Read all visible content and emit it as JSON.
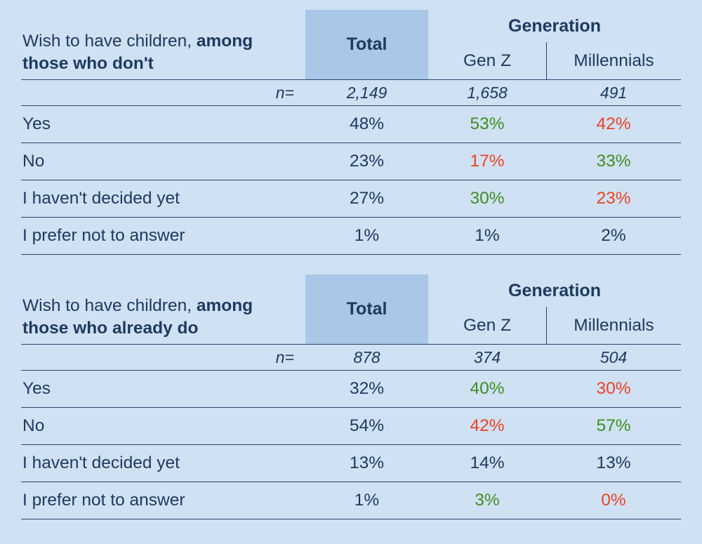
{
  "colors": {
    "background": "#cfe1f2",
    "highlight": "#a9c7e6",
    "navy": "#1f3a60",
    "green": "#3e8f22",
    "red": "#ee4223",
    "line": "#26456f"
  },
  "chart_data": [
    {
      "type": "table",
      "title": {
        "prefix": "Wish to have children, ",
        "bold": "among those who don't"
      },
      "total_header": "Total",
      "group_header": "Generation",
      "columns": [
        "Gen Z",
        "Millennials"
      ],
      "n_label": "n=",
      "n_values": [
        "2,149",
        "1,658",
        "491"
      ],
      "rows": [
        {
          "label": "Yes",
          "cells": [
            {
              "text": "48%",
              "color": "navy"
            },
            {
              "text": "53%",
              "color": "green"
            },
            {
              "text": "42%",
              "color": "red"
            }
          ]
        },
        {
          "label": "No",
          "cells": [
            {
              "text": "23%",
              "color": "navy"
            },
            {
              "text": "17%",
              "color": "red"
            },
            {
              "text": "33%",
              "color": "green"
            }
          ]
        },
        {
          "label": "I haven't decided yet",
          "cells": [
            {
              "text": "27%",
              "color": "navy"
            },
            {
              "text": "30%",
              "color": "green"
            },
            {
              "text": "23%",
              "color": "red"
            }
          ]
        },
        {
          "label": "I prefer not to answer",
          "cells": [
            {
              "text": "1%",
              "color": "navy"
            },
            {
              "text": "1%",
              "color": "navy"
            },
            {
              "text": "2%",
              "color": "navy"
            }
          ]
        }
      ]
    },
    {
      "type": "table",
      "title": {
        "prefix": "Wish to have children, ",
        "bold": "among those who already do"
      },
      "total_header": "Total",
      "group_header": "Generation",
      "columns": [
        "Gen Z",
        "Millennials"
      ],
      "n_label": "n=",
      "n_values": [
        "878",
        "374",
        "504"
      ],
      "rows": [
        {
          "label": "Yes",
          "cells": [
            {
              "text": "32%",
              "color": "navy"
            },
            {
              "text": "40%",
              "color": "green"
            },
            {
              "text": "30%",
              "color": "red"
            }
          ]
        },
        {
          "label": "No",
          "cells": [
            {
              "text": "54%",
              "color": "navy"
            },
            {
              "text": "42%",
              "color": "red"
            },
            {
              "text": "57%",
              "color": "green"
            }
          ]
        },
        {
          "label": "I haven't decided yet",
          "cells": [
            {
              "text": "13%",
              "color": "navy"
            },
            {
              "text": "14%",
              "color": "navy"
            },
            {
              "text": "13%",
              "color": "navy"
            }
          ]
        },
        {
          "label": "I prefer not to answer",
          "cells": [
            {
              "text": "1%",
              "color": "navy"
            },
            {
              "text": "3%",
              "color": "green"
            },
            {
              "text": "0%",
              "color": "red"
            }
          ]
        }
      ]
    }
  ]
}
